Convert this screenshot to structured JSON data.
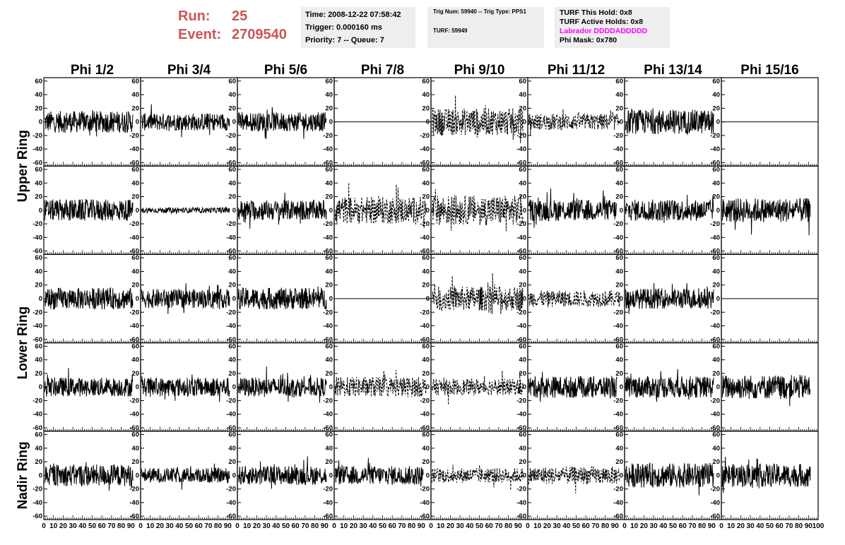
{
  "header": {
    "run_label": "Run:",
    "run_value": "25",
    "event_label": "Event:",
    "event_value": "2709540"
  },
  "info_box_1": {
    "time": "Time: 2008-12-22 07:58:42",
    "trigger": "Trigger: 0.000160 ms",
    "priority": "Priority: 7 -- Queue: 7"
  },
  "info_box_2": {
    "trig": "Trig Num: 59940 -- Trig Type: PPS1",
    "turf": "TURF: 59949"
  },
  "info_box_3": {
    "this_hold": "TURF This Hold: 0x8",
    "active_holds": "TURF Active Holds: 0x8",
    "labrador": "Labrador DDDDADDDDD",
    "phi_mask": "Phi Mask: 0x780"
  },
  "colors": {
    "header_red": "#cc5555",
    "labrador_magenta": "#ff00ff",
    "info_bg": "#eeeeee",
    "trace": "#000000"
  },
  "chart_data": {
    "type": "line",
    "columns": [
      "Phi 1/2",
      "Phi 3/4",
      "Phi 5/6",
      "Phi 7/8",
      "Phi 9/10",
      "Phi 11/12",
      "Phi 13/14",
      "Phi 15/16"
    ],
    "ring_labels": [
      {
        "label": "Upper Ring",
        "rows": [
          0,
          1
        ]
      },
      {
        "label": "Lower Ring",
        "rows": [
          2,
          3
        ]
      },
      {
        "label": "Nadir Ring",
        "rows": [
          4
        ]
      }
    ],
    "xlim": [
      0,
      100
    ],
    "ylim": [
      -65,
      65
    ],
    "x_ticks": [
      0,
      10,
      20,
      30,
      40,
      50,
      60,
      70,
      80,
      90
    ],
    "x_tick_labels_last": [
      "0",
      "10",
      "20",
      "30",
      "40",
      "50",
      "60",
      "70",
      "80",
      "90",
      "100"
    ],
    "y_ticks": [
      60,
      40,
      20,
      0,
      -20,
      -40,
      -60
    ],
    "grid": false,
    "panels": [
      [
        "solid-16",
        "solid-13",
        "solid-14",
        "flat",
        "dashed-20",
        "dashed-12",
        "solid-18",
        "flat"
      ],
      [
        "solid-16",
        "solid-4",
        "solid-15",
        "dashed-20",
        "dashed-22",
        "solid-16",
        "solid-16",
        "solid-18"
      ],
      [
        "solid-16",
        "solid-14",
        "solid-16",
        "flat",
        "dashed-18",
        "dashed-12",
        "solid-15",
        "flat"
      ],
      [
        "solid-14",
        "solid-14",
        "solid-14",
        "dashed-15",
        "dashed-12",
        "solid-16",
        "solid-16",
        "solid-18"
      ],
      [
        "solid-16",
        "solid-11",
        "solid-14",
        "solid-14",
        "dashed-11",
        "dashed-13",
        "solid-18",
        "solid-17"
      ]
    ]
  }
}
